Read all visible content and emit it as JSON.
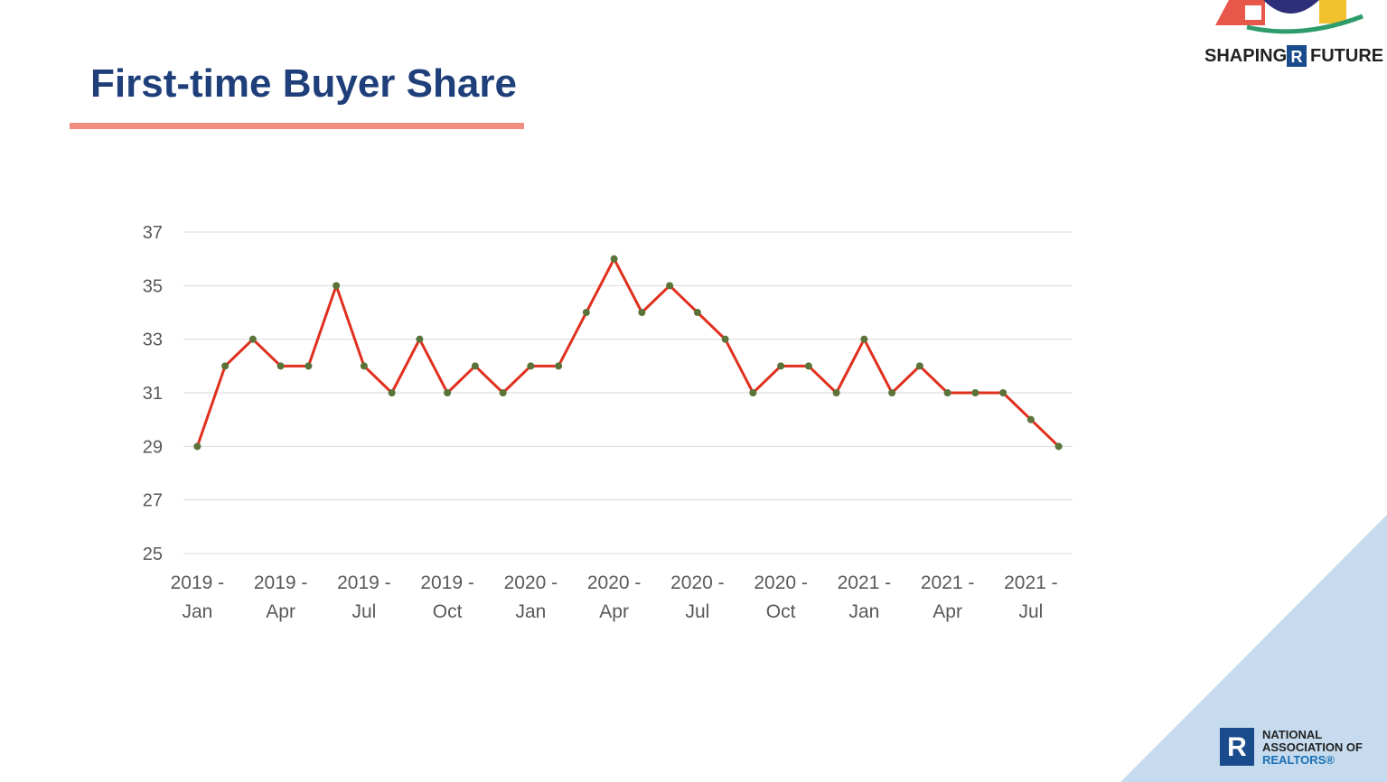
{
  "chart_data": {
    "type": "line",
    "title": "First-time Buyer Share",
    "categories": [
      "2019 - Jan",
      null,
      null,
      "2019 - Apr",
      null,
      null,
      "2019 - Jul",
      null,
      null,
      "2019 - Oct",
      null,
      null,
      "2020 - Jan",
      null,
      null,
      "2020 - Apr",
      null,
      null,
      "2020 - Jul",
      null,
      null,
      "2020 - Oct",
      null,
      null,
      "2021 - Jan",
      null,
      null,
      "2021 - Apr",
      null,
      null,
      "2021 - Jul",
      null
    ],
    "values": [
      29,
      32,
      33,
      32,
      32,
      35,
      32,
      31,
      33,
      31,
      32,
      31,
      32,
      32,
      34,
      36,
      34,
      35,
      34,
      33,
      31,
      32,
      32,
      31,
      33,
      31,
      32,
      31,
      31,
      31,
      30,
      29
    ],
    "color": "#e0301e",
    "marker_color": "#5b7339",
    "ylim": [
      25,
      37
    ],
    "yticks": [
      25,
      27,
      29,
      31,
      33,
      35,
      37
    ],
    "grid": true
  },
  "branding": {
    "top_left_word": "SHAPING",
    "top_right_word": "FUTURE",
    "footer_lines": [
      "NATIONAL",
      "ASSOCIATION OF",
      "REALTORS®"
    ]
  }
}
